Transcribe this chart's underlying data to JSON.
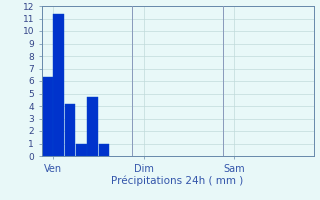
{
  "bar_values": [
    6.3,
    11.4,
    4.2,
    1.0,
    4.7,
    1.0,
    0,
    0,
    0,
    0,
    0,
    0,
    0,
    0,
    0,
    0,
    0,
    0,
    0,
    0,
    0,
    0,
    0,
    0
  ],
  "bar_color": "#0033cc",
  "bar_edge_color": "#0044cc",
  "n_bars": 24,
  "xlim": [
    0,
    24
  ],
  "ylim": [
    0,
    12
  ],
  "yticks": [
    0,
    1,
    2,
    3,
    4,
    5,
    6,
    7,
    8,
    9,
    10,
    11,
    12
  ],
  "xtick_positions": [
    1,
    9,
    17
  ],
  "xtick_labels": [
    "Ven",
    "Dim",
    "Sam"
  ],
  "xlabel": "Précipitations 24h ( mm )",
  "xlabel_color": "#3355aa",
  "tick_color": "#334488",
  "background_color": "#e8f8f8",
  "grid_color": "#c0dada",
  "axis_color": "#6688aa",
  "vline_positions": [
    8,
    16
  ],
  "vline_color": "#8899bb",
  "ytick_fontsize": 6.5,
  "xtick_fontsize": 7.0,
  "xlabel_fontsize": 7.5
}
